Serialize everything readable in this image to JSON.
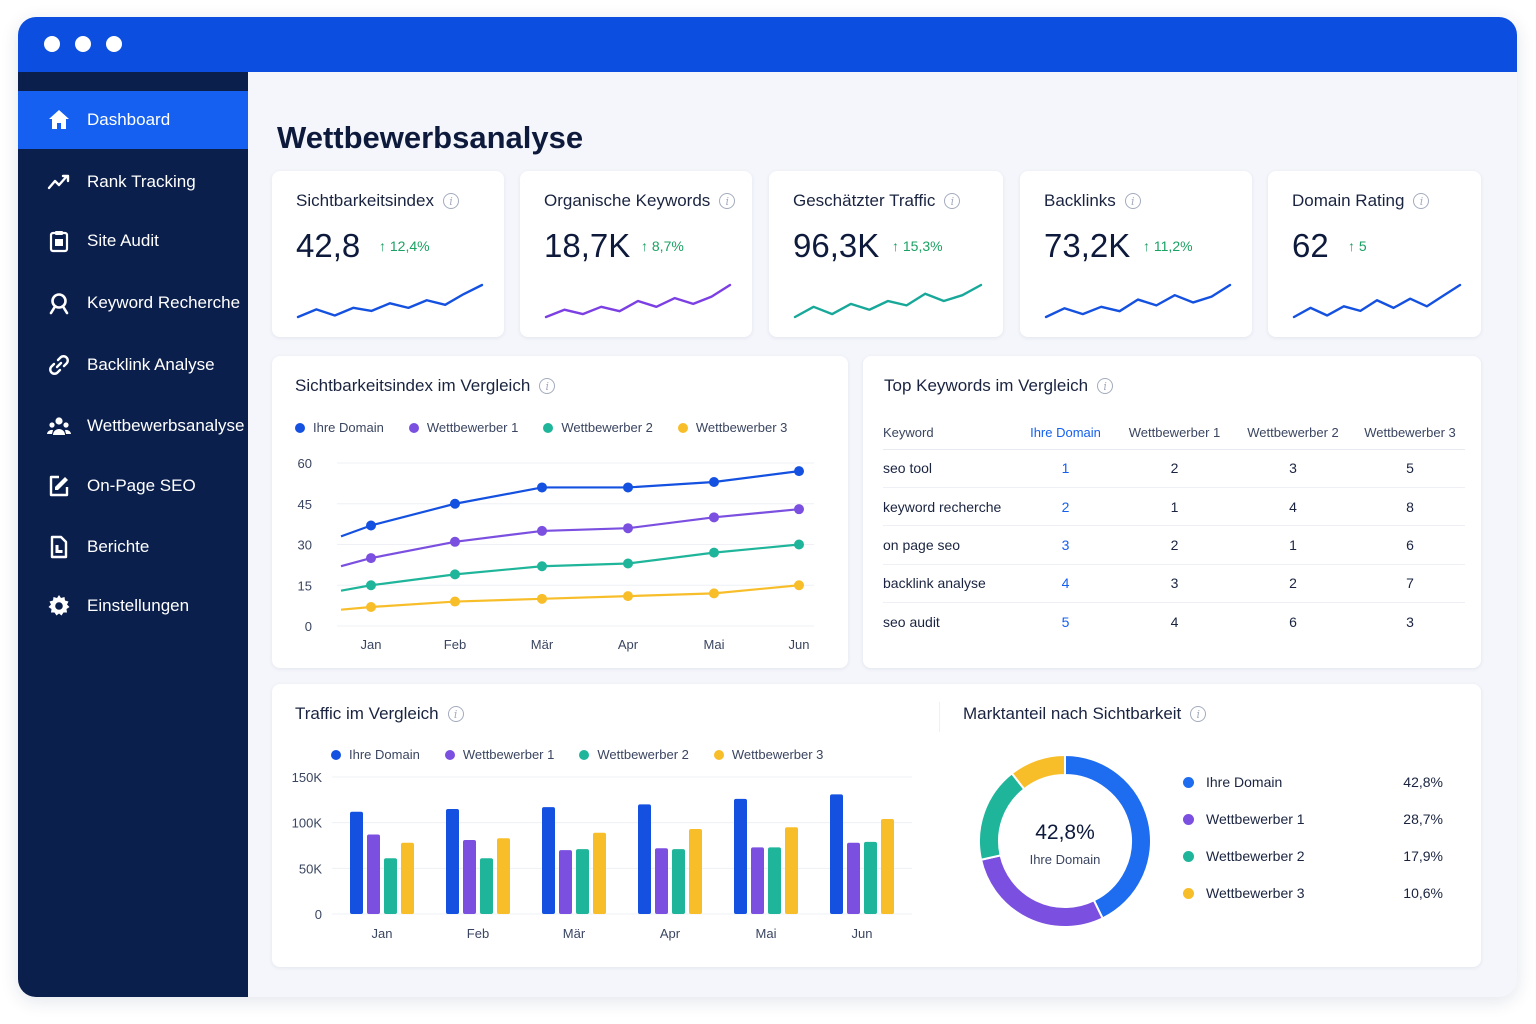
{
  "window": {
    "dots": [
      "dot",
      "dot",
      "dot"
    ]
  },
  "sidebar": {
    "items": [
      {
        "label": "Dashboard",
        "icon": "home-icon",
        "active": true
      },
      {
        "label": "Rank Tracking",
        "icon": "trend-line-icon"
      },
      {
        "label": "Site Audit",
        "icon": "clipboard-icon"
      },
      {
        "label": "Keyword Recherche",
        "icon": "search-icon"
      },
      {
        "label": "Backlink Analyse",
        "icon": "link-icon"
      },
      {
        "label": "Wettbewerbsanalyse",
        "icon": "users-icon"
      },
      {
        "label": "On-Page SEO",
        "icon": "edit-icon"
      },
      {
        "label": "Berichte",
        "icon": "document-icon"
      },
      {
        "label": "Einstellungen",
        "icon": "gear-icon"
      }
    ]
  },
  "page": {
    "title": "Wettbewerbsanalyse"
  },
  "kpis": [
    {
      "title": "Sichtbarkeitsindex",
      "value": "42,8",
      "delta": "↑ 12,4%",
      "color": "#1451e0",
      "trend": [
        3,
        8,
        4,
        9,
        7,
        12,
        9,
        14,
        11,
        18,
        24
      ]
    },
    {
      "title": "Organische Keywords",
      "value": "18,7K",
      "delta": "↑ 8,7%",
      "color": "#7b3fe4",
      "trend": [
        2,
        7,
        4,
        9,
        6,
        13,
        9,
        15,
        11,
        16,
        24
      ]
    },
    {
      "title": "Geschätzter Traffic",
      "value": "96,3K",
      "delta": "↑ 15,3%",
      "color": "#18a89a",
      "trend": [
        3,
        10,
        5,
        12,
        8,
        14,
        11,
        19,
        14,
        18,
        25
      ]
    },
    {
      "title": "Backlinks",
      "value": "73,2K",
      "delta": "↑ 11,2%",
      "color": "#1451e0",
      "trend": [
        2,
        8,
        4,
        9,
        6,
        14,
        10,
        17,
        12,
        16,
        24
      ]
    },
    {
      "title": "Domain Rating",
      "value": "62",
      "delta": "↑ 5",
      "color": "#1451e0",
      "trend": [
        3,
        9,
        4,
        10,
        7,
        14,
        9,
        15,
        10,
        17,
        24
      ]
    }
  ],
  "visibility_card": {
    "title": "Sichtbarkeitsindex im Vergleich",
    "legend": [
      "Ihre Domain",
      "Wettbewerber 1",
      "Wettbewerber 2",
      "Wettbewerber 3"
    ]
  },
  "keywords_card": {
    "title": "Top Keywords im Vergleich",
    "headers": [
      "Keyword",
      "Ihre Domain",
      "Wettbewerber 1",
      "Wettbewerber 2",
      "Wettbewerber 3"
    ],
    "rows": [
      [
        "seo tool",
        "1",
        "2",
        "3",
        "5"
      ],
      [
        "keyword recherche",
        "2",
        "1",
        "4",
        "8"
      ],
      [
        "on page seo",
        "3",
        "2",
        "1",
        "6"
      ],
      [
        "backlink analyse",
        "4",
        "3",
        "2",
        "7"
      ],
      [
        "seo audit",
        "5",
        "4",
        "6",
        "3"
      ]
    ]
  },
  "traffic_card": {
    "title": "Traffic im Vergleich",
    "legend": [
      "Ihre Domain",
      "Wettbewerber 1",
      "Wettbewerber 2",
      "Wettbewerber 3"
    ]
  },
  "share_card": {
    "title": "Marktanteil nach Sichtbarkeit",
    "center_value": "42,8%",
    "center_label": "Ihre Domain"
  },
  "chart_data": [
    {
      "type": "line",
      "title": "Sichtbarkeitsindex im Vergleich",
      "x": [
        "Jan",
        "Feb",
        "Mär",
        "Apr",
        "Mai",
        "Jun"
      ],
      "yticks": [
        "0",
        "15",
        "30",
        "45",
        "60"
      ],
      "ylim": [
        0,
        60
      ],
      "grid": true,
      "legend_position": "top",
      "series": [
        {
          "name": "Ihre Domain",
          "color": "#1451e0",
          "values": [
            37,
            45,
            51,
            51,
            53,
            57
          ]
        },
        {
          "name": "Wettbewerber 1",
          "color": "#7b4fe0",
          "values": [
            25,
            31,
            35,
            36,
            40,
            43
          ]
        },
        {
          "name": "Wettbewerber 2",
          "color": "#1fb59a",
          "values": [
            15,
            19,
            22,
            23,
            27,
            30
          ]
        },
        {
          "name": "Wettbewerber 3",
          "color": "#f8be2a",
          "values": [
            7,
            9,
            10,
            11,
            12,
            15
          ]
        }
      ]
    },
    {
      "type": "bar",
      "title": "Traffic im Vergleich",
      "categories": [
        "Jan",
        "Feb",
        "Mär",
        "Apr",
        "Mai",
        "Jun"
      ],
      "yticks": [
        "0",
        "50K",
        "100K",
        "150K"
      ],
      "ylim": [
        0,
        150000
      ],
      "grid": true,
      "legend_position": "top",
      "series": [
        {
          "name": "Ihre Domain",
          "color": "#1451e0",
          "values": [
            112000,
            115000,
            117000,
            120000,
            126000,
            131000
          ]
        },
        {
          "name": "Wettbewerber 1",
          "color": "#7b4fe0",
          "values": [
            87000,
            81000,
            70000,
            72000,
            73000,
            78000
          ]
        },
        {
          "name": "Wettbewerber 2",
          "color": "#1fb59a",
          "values": [
            61000,
            61000,
            71000,
            71000,
            73000,
            79000
          ]
        },
        {
          "name": "Wettbewerber 3",
          "color": "#f8be2a",
          "values": [
            78000,
            83000,
            89000,
            93000,
            95000,
            104000
          ]
        }
      ]
    },
    {
      "type": "pie",
      "title": "Marktanteil nach Sichtbarkeit",
      "labels": [
        "Ihre Domain",
        "Wettbewerber 1",
        "Wettbewerber 2",
        "Wettbewerber 3"
      ],
      "values": [
        42.8,
        28.7,
        17.9,
        10.6
      ],
      "display": [
        "42,8%",
        "28,7%",
        "17,9%",
        "10,6%"
      ],
      "colors": [
        "#1e6cf0",
        "#7b4fe0",
        "#1fb59a",
        "#f8be2a"
      ],
      "legend_position": "right"
    }
  ]
}
